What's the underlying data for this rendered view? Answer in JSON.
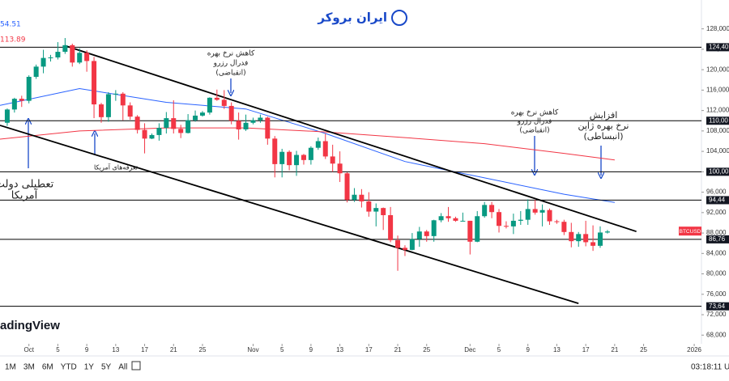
{
  "header": {
    "logo": "ایران بروکر"
  },
  "legend_values": [
    "54.51",
    "113.89"
  ],
  "watermark": "adingView",
  "chart_data": {
    "type": "candlestick",
    "symbol": "BTCUSD",
    "up_color": "#089981",
    "down_color": "#f23645",
    "dates": [
      "Sep 28",
      "Sep 29",
      "Sep 30",
      "Oct 1",
      "Oct 2",
      "Oct 3",
      "Oct 4",
      "Oct 5",
      "Oct 6",
      "Oct 7",
      "Oct 8",
      "Oct 9",
      "Oct 10",
      "Oct 11",
      "Oct 12",
      "Oct 13",
      "Oct 14",
      "Oct 15",
      "Oct 16",
      "Oct 17",
      "Oct 18",
      "Oct 19",
      "Oct 20",
      "Oct 21",
      "Oct 22",
      "Oct 23",
      "Oct 24",
      "Oct 25",
      "Oct 26",
      "Oct 27",
      "Oct 28",
      "Oct 29",
      "Oct 30",
      "Oct 31",
      "Nov 1",
      "Nov 2",
      "Nov 3",
      "Nov 4",
      "Nov 5",
      "Nov 6",
      "Nov 7",
      "Nov 8",
      "Nov 9",
      "Nov 10",
      "Nov 11",
      "Nov 12",
      "Nov 13",
      "Nov 14",
      "Nov 15",
      "Nov 16",
      "Nov 17",
      "Nov 18",
      "Nov 19",
      "Nov 20",
      "Nov 21",
      "Nov 22",
      "Nov 23",
      "Nov 24",
      "Nov 25",
      "Nov 26",
      "Nov 27",
      "Nov 28",
      "Nov 29",
      "Nov 30",
      "Dec 1",
      "Dec 2",
      "Dec 3",
      "Dec 4",
      "Dec 5",
      "Dec 6",
      "Dec 7",
      "Dec 8",
      "Dec 9",
      "Dec 10",
      "Dec 11",
      "Dec 12",
      "Dec 13",
      "Dec 14",
      "Dec 15",
      "Dec 16",
      "Dec 17",
      "Dec 18",
      "Dec 19",
      "Dec 20"
    ],
    "open": [
      109600,
      112200,
      114300,
      113900,
      118600,
      120600,
      122300,
      122400,
      123500,
      124800,
      121400,
      123300,
      121700,
      113200,
      110700,
      115200,
      115300,
      113000,
      110800,
      108200,
      106500,
      107200,
      108600,
      110500,
      108400,
      107600,
      110100,
      111000,
      111600,
      114500,
      114100,
      112900,
      110000,
      108300,
      109600,
      110100,
      110600,
      106500,
      101500,
      103900,
      101300,
      103300,
      102300,
      104700,
      106000,
      103000,
      101600,
      99700,
      94500,
      95500,
      94200,
      92200,
      92900,
      91500,
      86600,
      85100,
      84700,
      86800,
      88300,
      87400,
      90500,
      91300,
      90900,
      90400,
      90400,
      86300,
      91300,
      93500,
      92100,
      89400,
      89300,
      90400,
      90600,
      92700,
      92000,
      92500,
      90300,
      90200,
      88200,
      86400,
      87800,
      86200,
      85500,
      88100
    ],
    "high": [
      112400,
      114500,
      114900,
      118900,
      121000,
      123900,
      122900,
      125400,
      126200,
      125100,
      124200,
      123800,
      122500,
      113500,
      115600,
      116000,
      115600,
      113600,
      111100,
      109500,
      107500,
      109500,
      111700,
      114000,
      109200,
      111300,
      112000,
      111900,
      114600,
      116100,
      116000,
      113600,
      111600,
      111200,
      110600,
      111200,
      110800,
      107000,
      104500,
      104200,
      104100,
      103500,
      105000,
      106700,
      107500,
      105300,
      104000,
      99900,
      96800,
      96600,
      96000,
      93800,
      93000,
      93100,
      87500,
      85600,
      88000,
      89200,
      88600,
      90600,
      91900,
      93100,
      91200,
      92000,
      90400,
      92300,
      94100,
      94100,
      92700,
      90300,
      91800,
      92300,
      94600,
      94500,
      93600,
      92800,
      90600,
      90600,
      90000,
      88200,
      90400,
      89500,
      89300,
      88600
    ],
    "low": [
      109000,
      111600,
      112700,
      113400,
      118200,
      119300,
      121600,
      122000,
      123100,
      120600,
      121100,
      119600,
      110500,
      109600,
      109800,
      113900,
      110100,
      110200,
      107500,
      103600,
      106400,
      106100,
      107500,
      107500,
      106600,
      107500,
      109800,
      110800,
      111200,
      113900,
      112300,
      109300,
      106300,
      108000,
      109300,
      109600,
      105300,
      98900,
      98900,
      100300,
      99200,
      101400,
      101400,
      104300,
      102500,
      100000,
      98000,
      94000,
      94100,
      93000,
      91200,
      89300,
      88600,
      86200,
      80600,
      83500,
      84600,
      85300,
      86300,
      86300,
      90100,
      90200,
      90200,
      90300,
      83800,
      86200,
      91000,
      90900,
      88100,
      88900,
      87800,
      89600,
      89600,
      91600,
      89300,
      89600,
      89800,
      87600,
      85200,
      85300,
      85400,
      84500,
      85100,
      87900
    ],
    "close": [
      112200,
      114300,
      113900,
      118600,
      120600,
      122300,
      122400,
      123500,
      124800,
      121400,
      123300,
      121700,
      113200,
      110700,
      115200,
      115300,
      113000,
      110800,
      108200,
      106500,
      107200,
      108600,
      110500,
      108400,
      107600,
      110100,
      111000,
      111600,
      114500,
      114100,
      112900,
      110000,
      108300,
      109600,
      110100,
      110600,
      106500,
      101500,
      103900,
      101300,
      103300,
      102300,
      104700,
      106000,
      103000,
      101600,
      99700,
      94500,
      95500,
      94200,
      92200,
      92900,
      91500,
      86600,
      85100,
      84700,
      86800,
      88300,
      87400,
      90500,
      91300,
      90900,
      90400,
      90400,
      86300,
      91300,
      93500,
      92100,
      89400,
      89300,
      90400,
      90600,
      92700,
      92000,
      92500,
      90300,
      90200,
      88200,
      86400,
      87800,
      86200,
      85500,
      88100,
      88300
    ],
    "xlim": [
      "Sep 27",
      "Jan 2"
    ],
    "xticks": [
      {
        "value": "Oct 1",
        "label": "Oct"
      },
      {
        "value": "Oct 5",
        "label": "5"
      },
      {
        "value": "Oct 9",
        "label": "9"
      },
      {
        "value": "Oct 13",
        "label": "13"
      },
      {
        "value": "Oct 17",
        "label": "17"
      },
      {
        "value": "Oct 21",
        "label": "21"
      },
      {
        "value": "Oct 25",
        "label": "25"
      },
      {
        "value": "Nov 1",
        "label": "Nov"
      },
      {
        "value": "Nov 5",
        "label": "5"
      },
      {
        "value": "Nov 9",
        "label": "9"
      },
      {
        "value": "Nov 13",
        "label": "13"
      },
      {
        "value": "Nov 17",
        "label": "17"
      },
      {
        "value": "Nov 21",
        "label": "21"
      },
      {
        "value": "Nov 25",
        "label": "25"
      },
      {
        "value": "Dec 1",
        "label": "Dec"
      },
      {
        "value": "Dec 5",
        "label": "5"
      },
      {
        "value": "Dec 9",
        "label": "9"
      },
      {
        "value": "Dec 13",
        "label": "13"
      },
      {
        "value": "Dec 17",
        "label": "17"
      },
      {
        "value": "Dec 21",
        "label": "21"
      },
      {
        "value": "Dec 25",
        "label": "25"
      },
      {
        "value": "Jan 1",
        "label": "2026"
      }
    ],
    "ylim": [
      66300,
      130800
    ],
    "yticks": [
      {
        "value": 68000,
        "label": "68,000"
      },
      {
        "value": 72000,
        "label": "72,000"
      },
      {
        "value": 76000,
        "label": "76,000"
      },
      {
        "value": 80000,
        "label": "80,000"
      },
      {
        "value": 84000,
        "label": "84,000"
      },
      {
        "value": 88000,
        "label": "88,000"
      },
      {
        "value": 92000,
        "label": "92,000"
      },
      {
        "value": 96000,
        "label": "96,000"
      },
      {
        "value": 100000,
        "label": "100,000"
      },
      {
        "value": 104000,
        "label": "104,000"
      },
      {
        "value": 108000,
        "label": "108,000"
      },
      {
        "value": 112000,
        "label": "112,000"
      },
      {
        "value": 116000,
        "label": "116,000"
      },
      {
        "value": 120000,
        "label": "120,000"
      },
      {
        "value": 124000,
        "label": "124,000"
      },
      {
        "value": 128000,
        "label": "128,000"
      }
    ],
    "levels": [
      {
        "value": 124400,
        "label": "124,40"
      },
      {
        "value": 110000,
        "label": "110,00"
      },
      {
        "value": 100000,
        "label": "100,00"
      },
      {
        "value": 94440,
        "label": "94,44"
      },
      {
        "value": 86760,
        "label": "86,76"
      },
      {
        "value": 73640,
        "label": "73,64"
      }
    ],
    "trendlines": [
      {
        "x": [
          "Oct 6",
          "Dec 24"
        ],
        "values": [
          124700,
          88300
        ]
      },
      {
        "x": [
          "Sep 27",
          "Dec 16"
        ],
        "values": [
          109100,
          74200
        ]
      }
    ],
    "indicators": [
      {
        "color": "#2962ff",
        "x": [
          "Sep 27",
          "Oct 8",
          "Oct 20",
          "Oct 31",
          "Nov 11",
          "Nov 22",
          "Dec 3",
          "Dec 14",
          "Dec 21"
        ],
        "values": [
          113000,
          116300,
          113600,
          112300,
          107500,
          102000,
          98800,
          95600,
          94000
        ]
      },
      {
        "color": "#f23645",
        "x": [
          "Sep 27",
          "Oct 8",
          "Oct 20",
          "Oct 31",
          "Nov 11",
          "Nov 22",
          "Dec 3",
          "Dec 14",
          "Dec 21"
        ],
        "values": [
          106400,
          108000,
          108600,
          108600,
          107800,
          106700,
          105500,
          103600,
          102300
        ]
      }
    ],
    "annotations": [
      {
        "lines": [
          "کاهش نرخ بهره",
          "فدرال رزرو",
          "(انقباضی)"
        ]
      },
      {
        "lines": [
          "کاهش نرخ بهره",
          "فدرال رزرو",
          "(انقباضی)"
        ]
      },
      {
        "lines": [
          "افزایش",
          "نرخ بهره ژاپن",
          "(انبساطی)"
        ]
      },
      {
        "lines": [
          "تعرفه‌های آمریکا"
        ]
      },
      {
        "lines": [
          "تعطیلی دولت",
          "آمریکا"
        ]
      }
    ]
  },
  "toolbar": {
    "ranges": [
      "1M",
      "3M",
      "6M",
      "YTD",
      "1Y",
      "5Y",
      "All"
    ],
    "time": "03:18:11 U"
  }
}
